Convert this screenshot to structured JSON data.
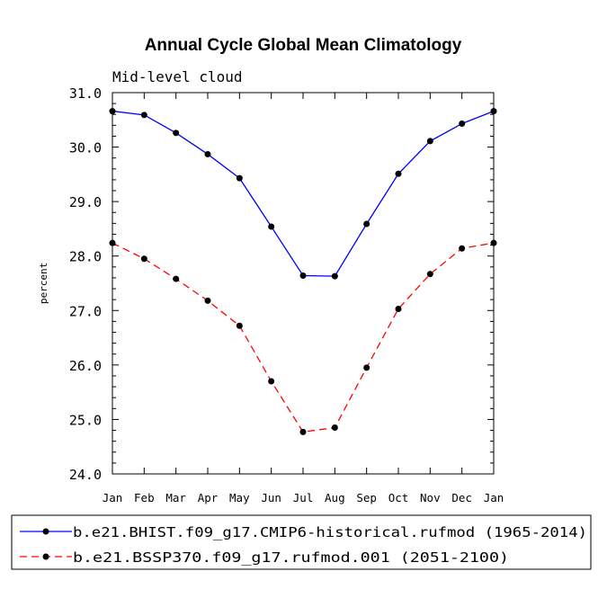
{
  "chart_data": {
    "type": "line",
    "title": "Annual Cycle Global Mean Climatology",
    "subtitle": "Mid-level cloud",
    "ylabel": "percent",
    "xlabel": "",
    "categories": [
      "Jan",
      "Feb",
      "Mar",
      "Apr",
      "May",
      "Jun",
      "Jul",
      "Aug",
      "Sep",
      "Oct",
      "Nov",
      "Dec",
      "Jan"
    ],
    "ylim": [
      24.0,
      31.0
    ],
    "yticks": [
      "24.0",
      "25.0",
      "26.0",
      "27.0",
      "28.0",
      "29.0",
      "30.0",
      "31.0"
    ],
    "series": [
      {
        "name": "b.e21.BHIST.f09_g17.CMIP6-historical.rufmod (1965-2014)",
        "color": "#0000ff",
        "dash": "solid",
        "values": [
          30.66,
          30.59,
          30.26,
          29.87,
          29.43,
          28.54,
          27.64,
          27.63,
          28.59,
          29.51,
          30.11,
          30.43,
          30.66
        ]
      },
      {
        "name": "b.e21.BSSP370.f09_g17.rufmod.001 (2051-2100)",
        "color": "#ff0000",
        "dash": "dashed",
        "values": [
          28.24,
          27.95,
          27.58,
          27.18,
          26.72,
          25.7,
          24.77,
          24.85,
          25.95,
          27.03,
          27.67,
          28.14,
          28.24
        ]
      }
    ]
  }
}
